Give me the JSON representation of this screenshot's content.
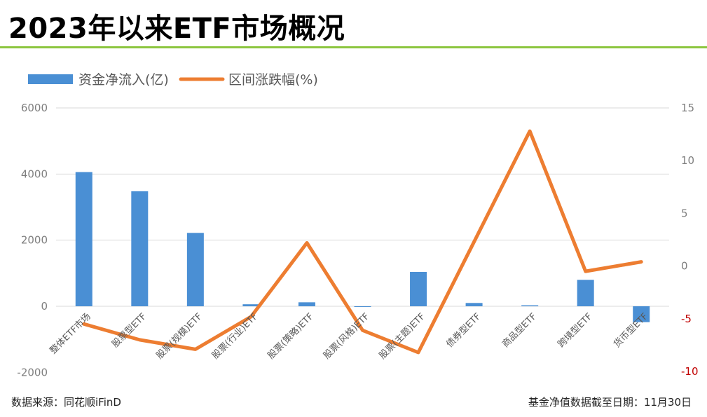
{
  "title": "2023年以来ETF市场概况",
  "footer": {
    "source": "数据来源：同花顺iFinD",
    "note": "基金净值数据截至日期：11月30日"
  },
  "colors": {
    "bar": "#4a8fd4",
    "line": "#ed7d31",
    "grid": "#d9d9d9",
    "title_rule": "#8cc63f",
    "negative_tick": "#c00000"
  },
  "chart_data": {
    "type": "bar+line",
    "categories": [
      "整体ETF市场",
      "股票型ETF",
      "股票(规模)ETF",
      "股票(行业)ETF",
      "股票(策略)ETF",
      "股票(风格)ETF",
      "股票(主题)ETF",
      "债券型ETF",
      "商品型ETF",
      "跨境型ETF",
      "货币型ETF"
    ],
    "series": [
      {
        "name": "资金净流入(亿)",
        "type": "bar",
        "axis": "left",
        "values": [
          4060,
          3480,
          2220,
          60,
          120,
          -20,
          1040,
          100,
          30,
          800,
          -480
        ]
      },
      {
        "name": "区间涨跌幅(%)",
        "type": "line",
        "axis": "right",
        "values": [
          -5.5,
          -7.0,
          -7.9,
          -4.8,
          2.2,
          -6.1,
          -8.2,
          2.3,
          12.8,
          -0.5,
          0.4
        ]
      }
    ],
    "y_left": {
      "min": -2000,
      "max": 6000,
      "ticks": [
        -2000,
        0,
        2000,
        4000,
        6000
      ]
    },
    "y_right": {
      "min": -10,
      "max": 15,
      "ticks": [
        -10,
        -5,
        0,
        5,
        10,
        15
      ]
    },
    "grid": true,
    "legend_position": "top-left"
  }
}
